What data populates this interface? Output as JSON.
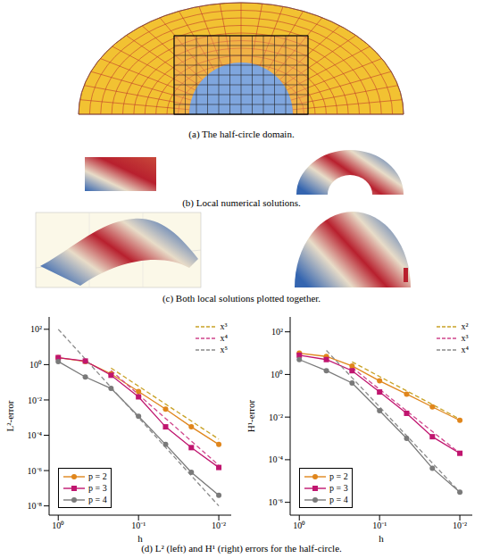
{
  "figure": {
    "captions": {
      "a": "(a) The half-circle domain.",
      "b": "(b) Local numerical solutions.",
      "c": "(c) Both local solutions plotted together.",
      "d": "(d) L² (left) and H¹ (right) errors for the half-circle."
    }
  },
  "chart_data": [
    {
      "type": "line",
      "log": true,
      "grid": false,
      "x_label": "h",
      "y_label": "L²-error",
      "x": [
        1,
        0.46,
        0.22,
        0.1,
        0.046,
        0.022,
        0.01
      ],
      "xlim": [
        1.3,
        0.007
      ],
      "xticks": [
        {
          "value": 1,
          "label": "10⁰"
        },
        {
          "value": 0.1,
          "label": "10⁻¹"
        },
        {
          "value": 0.01,
          "label": "10⁻²"
        }
      ],
      "ylim": [
        3e-09,
        500
      ],
      "yticks": [
        {
          "value": 100,
          "label": "10²"
        },
        {
          "value": 1,
          "label": "10⁰"
        },
        {
          "value": 0.01,
          "label": "10⁻²"
        },
        {
          "value": 0.0001,
          "label": "10⁻⁴"
        },
        {
          "value": 1e-06,
          "label": "10⁻⁶"
        },
        {
          "value": 1e-08,
          "label": "10⁻⁸"
        }
      ],
      "series": [
        {
          "name": "p = 2",
          "color": "#e0861c",
          "marker": "circle",
          "values": [
            2.5,
            1.5,
            0.3,
            0.03,
            0.003,
            0.0003,
            3e-05
          ]
        },
        {
          "name": "p = 3",
          "color": "#c0156f",
          "marker": "square",
          "values": [
            2.5,
            1.6,
            0.25,
            0.015,
            0.0003,
            2e-05,
            1.5e-06
          ]
        },
        {
          "name": "p = 4",
          "color": "#7a7a7a",
          "marker": "circle",
          "values": [
            1.5,
            0.2,
            0.045,
            0.0012,
            3e-05,
            8e-07,
            4e-08
          ]
        },
        {
          "name": "x³",
          "color": "#c9a227",
          "line_style": "dashed",
          "values": [
            null,
            null,
            0.639,
            0.06,
            0.0058,
            0.00064,
            6e-05
          ]
        },
        {
          "name": "x⁴",
          "color": "#d0458c",
          "line_style": "dashed",
          "values": [
            null,
            null,
            0.469,
            0.02,
            0.000895,
            4.7e-05,
            2e-06
          ]
        },
        {
          "name": "x⁵",
          "color": "#8a8a8a",
          "line_style": "dashed",
          "values": [
            100,
            2.06,
            0.0515,
            0.001,
            2.06e-05,
            5.15e-07,
            1e-08
          ]
        }
      ]
    },
    {
      "type": "line",
      "log": true,
      "grid": false,
      "x_label": "h",
      "y_label": "H¹-error",
      "x": [
        1,
        0.46,
        0.22,
        0.1,
        0.046,
        0.022,
        0.01
      ],
      "xlim": [
        1.3,
        0.007
      ],
      "xticks": [
        {
          "value": 1,
          "label": "10⁰"
        },
        {
          "value": 0.1,
          "label": "10⁻¹"
        },
        {
          "value": 0.01,
          "label": "10⁻²"
        }
      ],
      "ylim": [
        2.5e-07,
        500
      ],
      "yticks": [
        {
          "value": 100,
          "label": "10²"
        },
        {
          "value": 1,
          "label": "10⁰"
        },
        {
          "value": 0.01,
          "label": "10⁻²"
        },
        {
          "value": 0.0001,
          "label": "10⁻⁴"
        },
        {
          "value": 1e-06,
          "label": "10⁻⁶"
        }
      ],
      "series": [
        {
          "name": "p = 2",
          "color": "#e0861c",
          "marker": "circle",
          "values": [
            10,
            7,
            2.5,
            0.5,
            0.12,
            0.03,
            0.007
          ]
        },
        {
          "name": "p = 3",
          "color": "#c0156f",
          "marker": "square",
          "values": [
            8,
            5,
            1.5,
            0.15,
            0.015,
            0.0012,
            0.0002
          ]
        },
        {
          "name": "p = 4",
          "color": "#7a7a7a",
          "marker": "circle",
          "values": [
            5,
            1.5,
            0.4,
            0.02,
            0.001,
            4e-05,
            3e-06
          ]
        },
        {
          "name": "x²",
          "color": "#c9a227",
          "line_style": "dashed",
          "values": [
            null,
            null,
            3.9,
            0.8,
            0.17,
            0.039,
            0.008
          ]
        },
        {
          "name": "x³",
          "color": "#d0458c",
          "line_style": "dashed",
          "values": [
            null,
            null,
            2.13,
            0.2,
            0.0195,
            0.0021,
            0.0002
          ]
        },
        {
          "name": "x⁴",
          "color": "#8a8a8a",
          "line_style": "dashed",
          "values": [
            null,
            13.4,
            0.7,
            0.03,
            0.00134,
            7e-05,
            3e-06
          ]
        }
      ]
    }
  ]
}
